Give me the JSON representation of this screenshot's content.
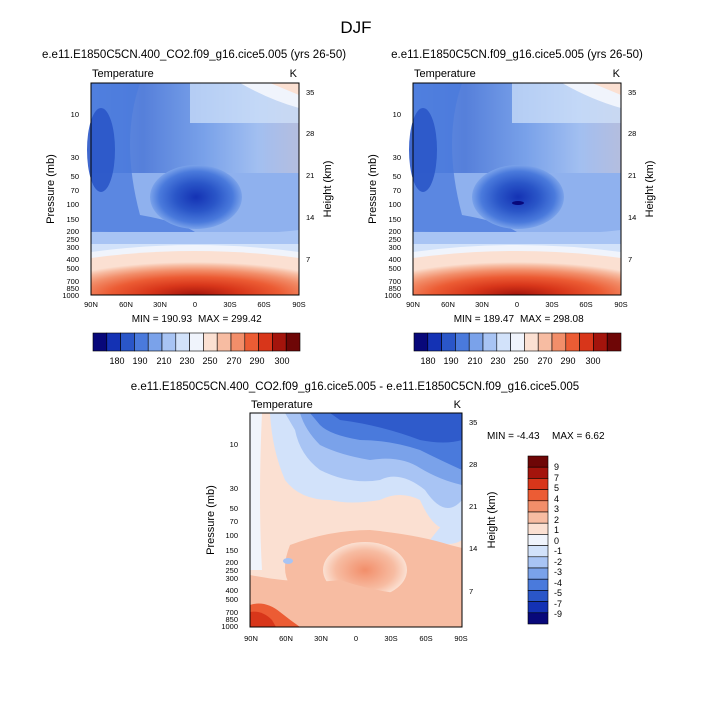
{
  "page_title": "DJF",
  "chart_data": [
    {
      "type": "heatmap",
      "title": "e.e11.E1850C5CN.400_CO2.f09_g16.cice5.005 (yrs 26-50)",
      "subtitle_left": "Temperature",
      "subtitle_right": "K",
      "xlabel": "",
      "ylabel": "Pressure (mb)",
      "ylabel_right": "Height (km)",
      "x_ticks": [
        "90N",
        "60N",
        "30N",
        "0",
        "30S",
        "60S",
        "90S"
      ],
      "y_ticks": [
        "10",
        "30",
        "50",
        "70",
        "100",
        "150",
        "200",
        "250",
        "300",
        "400",
        "500",
        "700",
        "850",
        "1000"
      ],
      "y2_ticks": [
        "35",
        "28",
        "21",
        "14",
        "7"
      ],
      "min_label": "MIN = 190.93",
      "max_label": "MAX = 299.42",
      "min": 190.93,
      "max": 299.42,
      "colorbar_labels": [
        "180",
        "190",
        "210",
        "230",
        "250",
        "270",
        "290",
        "300"
      ]
    },
    {
      "type": "heatmap",
      "title": "e.e11.E1850C5CN.f09_g16.cice5.005 (yrs 26-50)",
      "subtitle_left": "Temperature",
      "subtitle_right": "K",
      "xlabel": "",
      "ylabel": "Pressure (mb)",
      "ylabel_right": "Height (km)",
      "x_ticks": [
        "90N",
        "60N",
        "30N",
        "0",
        "30S",
        "60S",
        "90S"
      ],
      "y_ticks": [
        "10",
        "30",
        "50",
        "70",
        "100",
        "150",
        "200",
        "250",
        "300",
        "400",
        "500",
        "700",
        "850",
        "1000"
      ],
      "y2_ticks": [
        "35",
        "28",
        "21",
        "14",
        "7"
      ],
      "min_label": "MIN = 189.47",
      "max_label": "MAX = 298.08",
      "min": 189.47,
      "max": 298.08,
      "colorbar_labels": [
        "180",
        "190",
        "210",
        "230",
        "250",
        "270",
        "290",
        "300"
      ]
    },
    {
      "type": "heatmap",
      "title": "e.e11.E1850C5CN.400_CO2.f09_g16.cice5.005 - e.e11.E1850C5CN.f09_g16.cice5.005",
      "subtitle_left": "Temperature",
      "subtitle_right": "K",
      "xlabel": "",
      "ylabel": "Pressure (mb)",
      "ylabel_right": "Height (km)",
      "x_ticks": [
        "90N",
        "60N",
        "30N",
        "0",
        "30S",
        "60S",
        "90S"
      ],
      "y_ticks": [
        "10",
        "30",
        "50",
        "70",
        "100",
        "150",
        "200",
        "250",
        "300",
        "400",
        "500",
        "700",
        "850",
        "1000"
      ],
      "y2_ticks": [
        "35",
        "28",
        "21",
        "14",
        "7"
      ],
      "min_label": "MIN = -4.43",
      "max_label": "MAX =   6.62",
      "min": -4.43,
      "max": 6.62,
      "colorbar_labels": [
        "9",
        "7",
        "5",
        "4",
        "3",
        "2",
        "1",
        "0",
        "-1",
        "-2",
        "-3",
        "-4",
        "-5",
        "-7",
        "-9"
      ]
    }
  ],
  "colors": {
    "abs_scale": [
      "#08087a",
      "#1432b4",
      "#2a56c8",
      "#4a7adc",
      "#7aa2ea",
      "#a8c4f4",
      "#d2e2fa",
      "#f0f4fc",
      "#fbe0d2",
      "#f7bca2",
      "#f28e6a",
      "#ec5c34",
      "#d8361a",
      "#a4140c",
      "#6e0606"
    ],
    "diff_scale": [
      "#6e0606",
      "#a4140c",
      "#d8361a",
      "#ec5c34",
      "#f28e6a",
      "#f7bca2",
      "#fbe0d2",
      "#f0f4fc",
      "#d2e2fa",
      "#a8c4f4",
      "#7aa2ea",
      "#4a7adc",
      "#2a56c8",
      "#1432b4",
      "#08087a"
    ]
  }
}
